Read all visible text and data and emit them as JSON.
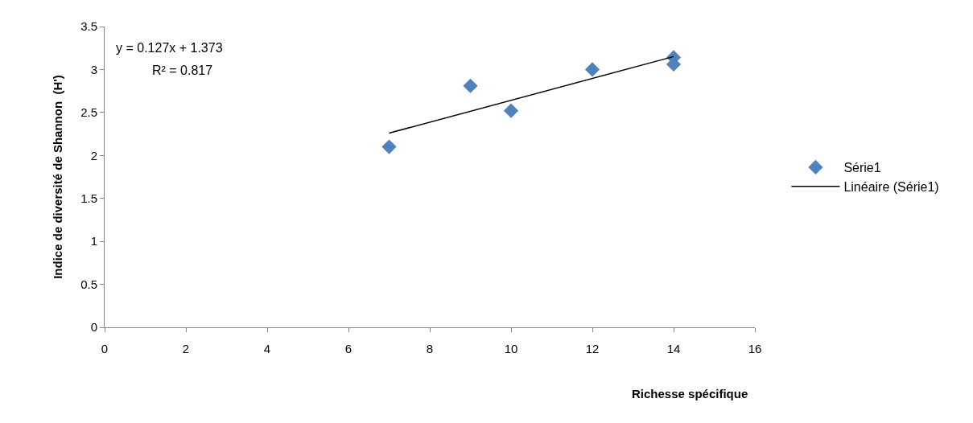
{
  "chart_data": {
    "type": "scatter",
    "xlabel": "Richesse spécifique",
    "ylabel": "Indice de diversité de Shannon  (H')",
    "x": [
      7,
      9,
      10,
      12,
      14,
      14
    ],
    "series": [
      {
        "name": "Série1",
        "color": "#4f81bd",
        "marker": "diamond",
        "values": [
          2.1,
          2.81,
          2.52,
          3.0,
          3.14,
          3.06
        ]
      },
      {
        "name": "Linéaire (Série1)",
        "type": "line",
        "color": "#000000",
        "marker": "none",
        "x": [
          7,
          14
        ],
        "values": [
          2.26,
          3.15
        ]
      }
    ],
    "annotations": [
      "y = 0.127x + 1.373",
      "R² = 0.817"
    ],
    "xlim": [
      0,
      16
    ],
    "xticks": [
      0,
      2,
      4,
      6,
      8,
      10,
      12,
      14,
      16
    ],
    "ylim": [
      0,
      3.5
    ],
    "yticks": [
      0,
      0.5,
      1,
      1.5,
      2,
      2.5,
      3,
      3.5
    ],
    "grid": false,
    "legend": "right"
  }
}
